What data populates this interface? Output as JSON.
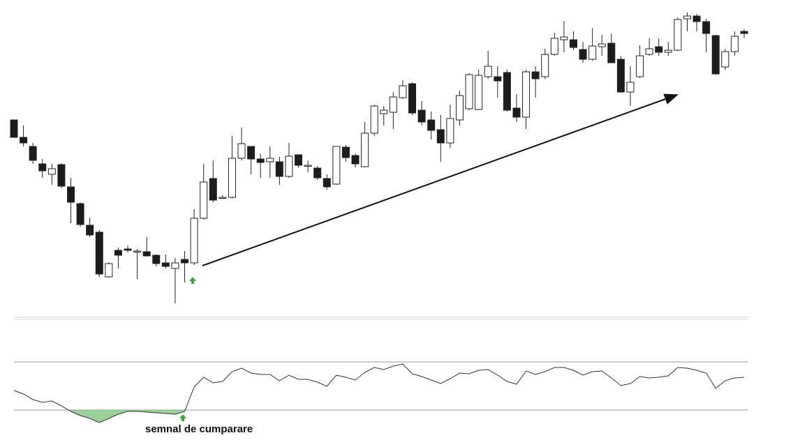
{
  "chart_data": [
    {
      "type": "candlestick",
      "open": [
        288,
        263,
        250,
        225,
        210,
        224,
        192,
        168,
        137,
        127,
        63,
        101,
        103,
        100,
        99,
        94,
        83,
        75,
        88,
        83,
        147,
        204,
        177,
        177,
        233,
        250,
        232,
        228,
        228,
        207,
        238,
        223,
        219,
        204,
        196,
        249,
        237,
        221,
        269,
        297,
        299,
        320,
        340,
        302,
        288,
        274,
        255,
        288,
        304,
        303,
        350,
        350,
        356,
        305,
        292,
        357,
        350,
        382,
        403,
        403,
        389,
        375,
        393,
        398,
        375,
        328,
        350,
        382,
        393,
        385,
        388,
        433,
        437,
        429,
        409,
        364,
        386,
        415
      ],
      "high": [
        288,
        280,
        255,
        232,
        225,
        226,
        205,
        170,
        148,
        130,
        84,
        105,
        108,
        103,
        120,
        95,
        95,
        90,
        100,
        160,
        225,
        230,
        180,
        265,
        277,
        250,
        240,
        250,
        235,
        255,
        238,
        230,
        222,
        210,
        250,
        252,
        240,
        285,
        310,
        308,
        328,
        345,
        342,
        315,
        300,
        295,
        310,
        330,
        355,
        360,
        387,
        365,
        360,
        325,
        360,
        365,
        390,
        413,
        430,
        415,
        400,
        420,
        410,
        412,
        380,
        365,
        395,
        405,
        405,
        400,
        435,
        442,
        440,
        433,
        410,
        390,
        415,
        418
      ],
      "low": [
        263,
        250,
        225,
        205,
        195,
        190,
        140,
        135,
        120,
        63,
        62,
        75,
        98,
        60,
        92,
        78,
        75,
        25,
        55,
        80,
        145,
        170,
        175,
        175,
        230,
        210,
        205,
        205,
        195,
        205,
        220,
        213,
        202,
        188,
        195,
        228,
        220,
        220,
        265,
        280,
        275,
        318,
        295,
        280,
        260,
        228,
        248,
        280,
        302,
        302,
        347,
        320,
        300,
        285,
        275,
        320,
        347,
        380,
        385,
        388,
        370,
        373,
        380,
        370,
        327,
        308,
        348,
        380,
        380,
        380,
        387,
        415,
        415,
        385,
        353,
        360,
        380,
        405
      ],
      "close": [
        263,
        255,
        230,
        215,
        218,
        193,
        170,
        138,
        123,
        67,
        82,
        94,
        101,
        100,
        93,
        82,
        78,
        83,
        83,
        147,
        199,
        173,
        177,
        233,
        254,
        232,
        227,
        233,
        207,
        236,
        223,
        223,
        205,
        192,
        250,
        234,
        225,
        269,
        308,
        302,
        321,
        337,
        298,
        285,
        273,
        255,
        290,
        323,
        353,
        352,
        365,
        344,
        302,
        292,
        357,
        347,
        382,
        405,
        407,
        392,
        375,
        394,
        397,
        370,
        328,
        342,
        380,
        390,
        385,
        388,
        432,
        437,
        429,
        412,
        354,
        386,
        408,
        412
      ],
      "up_color": "#ffffff",
      "down_color": "#1c1c1c",
      "edge_color": "#222222",
      "ylim": [
        0,
        460
      ]
    },
    {
      "type": "line",
      "values": [
        28,
        23,
        15,
        11,
        13,
        6,
        -2,
        -8,
        -12,
        -18,
        -12,
        -6,
        -2,
        -2,
        -3,
        -4,
        -5,
        -6,
        -2,
        33,
        47,
        39,
        41,
        55,
        60,
        53,
        51,
        51,
        42,
        50,
        44,
        44,
        40,
        34,
        50,
        47,
        43,
        54,
        61,
        58,
        63,
        66,
        52,
        48,
        43,
        38,
        45,
        53,
        52,
        57,
        58,
        50,
        41,
        37,
        56,
        51,
        55,
        61,
        61,
        57,
        50,
        55,
        56,
        46,
        35,
        38,
        48,
        46,
        47,
        49,
        61,
        60,
        57,
        53,
        31,
        42,
        46,
        47
      ],
      "levels": [
        0,
        69
      ],
      "color": "#333333",
      "fill_color": "#6fbf6f",
      "ylim": [
        -30,
        80
      ],
      "annotation": "semnal de cumparare"
    }
  ]
}
